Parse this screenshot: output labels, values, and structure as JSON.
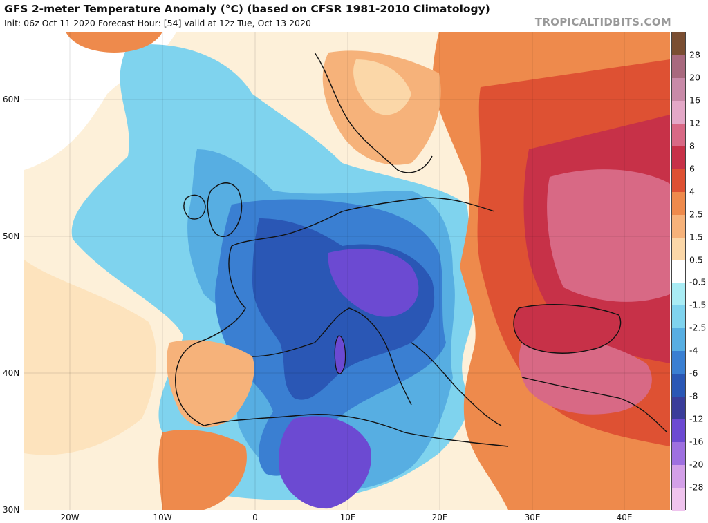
{
  "header": {
    "title": "GFS 2-meter Temperature Anomaly (°C) (based on CFSR 1981-2010 Climatology)",
    "subtitle": "Init: 06z Oct 11 2020   Forecast Hour: [54]   valid at 12z Tue, Oct 13 2020",
    "brand": "TROPICALTIDBITS.COM"
  },
  "axes": {
    "lat_labels": [
      "60N",
      "50N",
      "40N",
      "30N"
    ],
    "lon_labels": [
      "20W",
      "10W",
      "0",
      "10E",
      "20E",
      "30E",
      "40E"
    ]
  },
  "colorbar": {
    "labels": [
      "28",
      "20",
      "16",
      "12",
      "8",
      "6",
      "4",
      "2.5",
      "1.5",
      "0.5",
      "-0.5",
      "-1.5",
      "-2.5",
      "-4",
      "-6",
      "-8",
      "-12",
      "-16",
      "-20",
      "-28"
    ],
    "colors": [
      "#7a4e32",
      "#a8697e",
      "#c88aa8",
      "#e3a8c7",
      "#d86985",
      "#c73148",
      "#de5133",
      "#ee8a4c",
      "#f6b27a",
      "#fbd7a8",
      "#ffffff",
      "#a9ecf4",
      "#7fd3ee",
      "#57aee2",
      "#3a7fd2",
      "#2a57b5",
      "#3a3d9a",
      "#6c4ad2",
      "#9e70e0",
      "#d3a0e8",
      "#efc4ee"
    ],
    "colors_note_order": "top to bottom"
  },
  "map": {
    "colors": {
      "ocean_neutral": "#fdf0d9",
      "cold_light": "#7fd3ee",
      "cold_mid": "#57aee2",
      "cold_strong": "#3a7fd2",
      "cold_deep": "#2a57b5",
      "cold_extreme": "#6c4ad2",
      "warm_light": "#f6b27a",
      "warm_mid": "#ee8a4c",
      "warm_strong": "#de5133",
      "warm_deep": "#c73148",
      "warm_pink": "#d86985"
    }
  }
}
